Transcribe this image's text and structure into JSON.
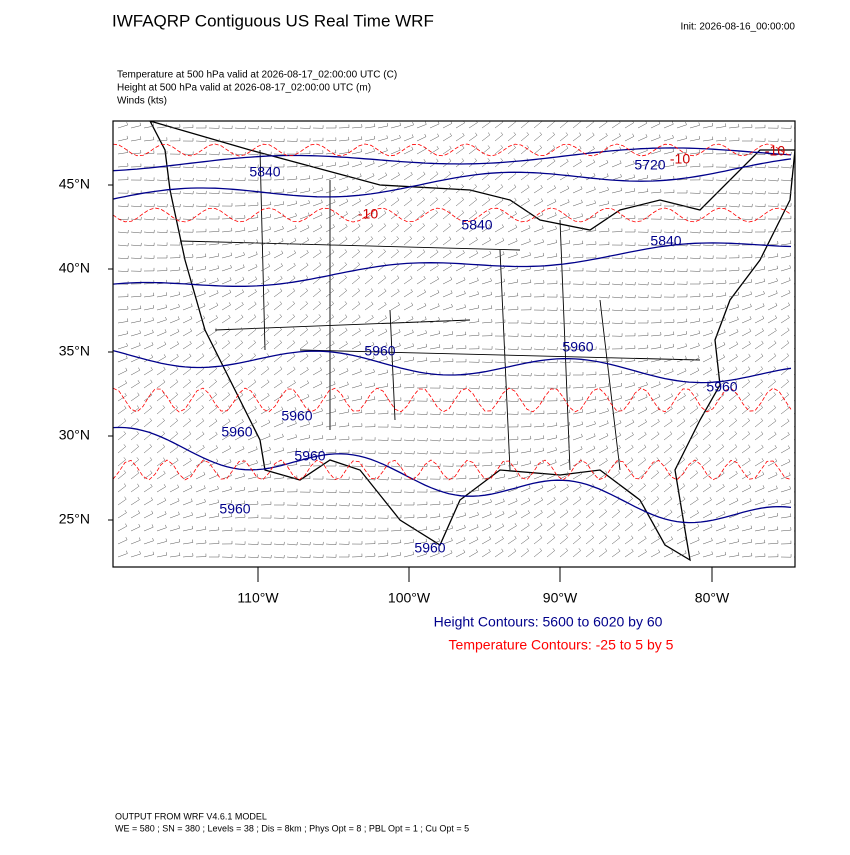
{
  "header": {
    "title": "IWFAQRP Contiguous US Real Time WRF",
    "init": "Init: 2026-08-16_00:00:00"
  },
  "fields": [
    "Temperature at 500 hPa valid at 2026-08-17_02:00:00 UTC   (C)",
    "Height at 500 hPa valid at 2026-08-17_02:00:00 UTC   (m)",
    "Winds   (kts)"
  ],
  "map": {
    "lat_labels": [
      "45°N",
      "40°N",
      "35°N",
      "30°N",
      "25°N"
    ],
    "lon_labels": [
      "110°W",
      "100°W",
      "90°W",
      "80°W"
    ],
    "height_labels": [
      "5840",
      "5720",
      "5840",
      "5840",
      "5960",
      "5960",
      "5960",
      "5960",
      "5960",
      "5960",
      "5960",
      "5960"
    ],
    "temperature_labels": [
      "-10",
      "-10",
      "-10"
    ]
  },
  "legend": {
    "height": "Height Contours: 5600 to 6020 by 60",
    "temperature": "Temperature Contours: -25 to 5 by 5"
  },
  "footer": {
    "model": "OUTPUT FROM WRF V4.6.1 MODEL",
    "settings": "WE = 580 ; SN = 380 ; Levels = 38 ; Dis = 8km ; Phys Opt = 8 ; PBL Opt = 1 ; Cu Opt = 5"
  }
}
